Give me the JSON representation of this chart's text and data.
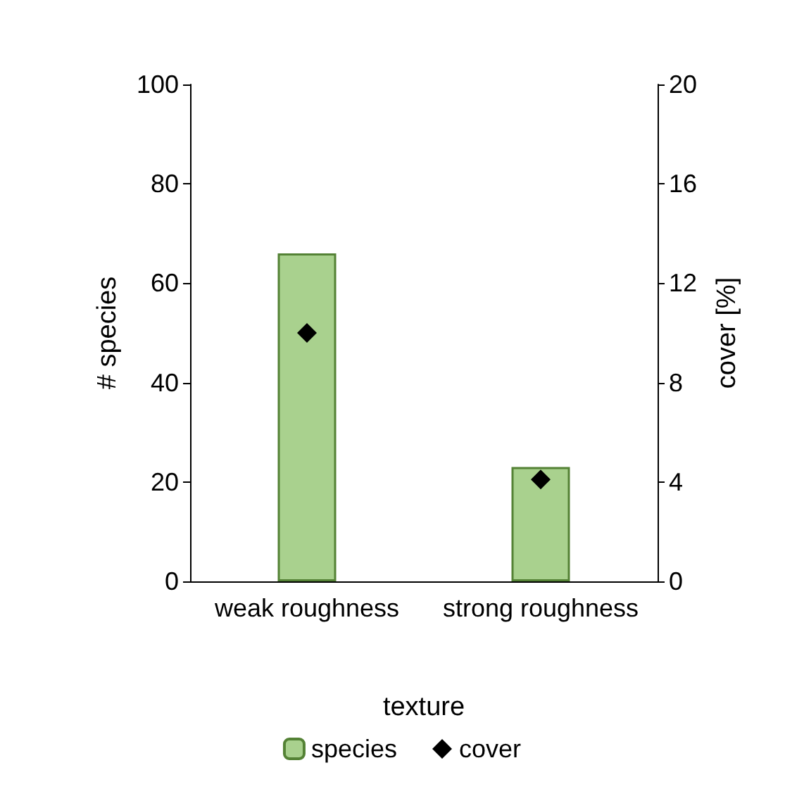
{
  "chart_data": {
    "type": "bar",
    "xlabel": "texture",
    "ylabel": "# species",
    "y2label": "cover [%]",
    "categories": [
      "weak roughness",
      "strong roughness"
    ],
    "series": [
      {
        "name": "species",
        "color": "#a9d18e",
        "values": [
          66,
          23
        ]
      },
      {
        "name": "cover",
        "type": "scatter",
        "axis": "y2",
        "color": "#000000",
        "marker": "diamond",
        "values": [
          10,
          4.1
        ]
      }
    ],
    "ylim": [
      0,
      100
    ],
    "yticks": [
      0,
      20,
      40,
      60,
      80,
      100
    ],
    "y2lim": [
      0,
      20
    ],
    "y2ticks": [
      0,
      4,
      8,
      12,
      16,
      20
    ],
    "grid": false,
    "legend": "bottom"
  }
}
